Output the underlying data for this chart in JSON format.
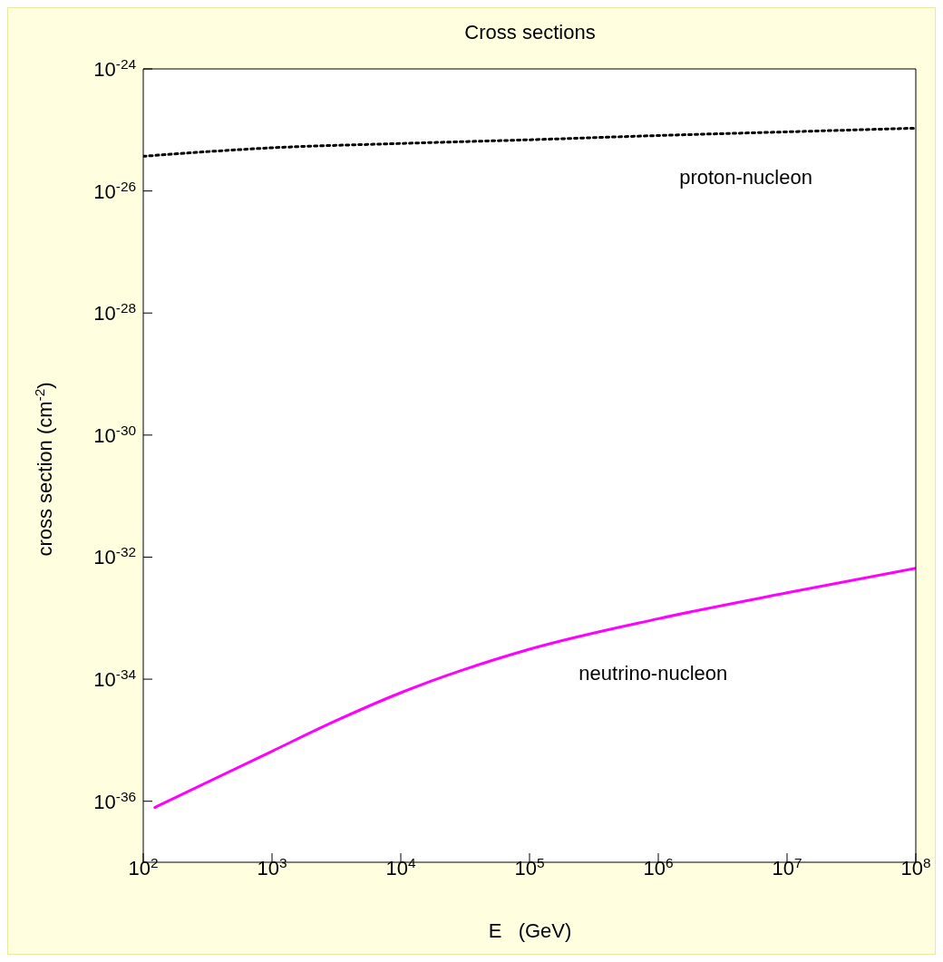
{
  "chart_data": {
    "type": "line",
    "title": "Cross sections",
    "xlabel": "E   (GeV)",
    "ylabel": "cross section (cm$^{-2}$)",
    "log": "xy",
    "xlim": [
      100,
      100000000
    ],
    "ylim": [
      1e-37,
      1e-24
    ],
    "xticks": [
      {
        "value": 100,
        "label": "10$^{2}$"
      },
      {
        "value": 1000,
        "label": "10$^{3}$"
      },
      {
        "value": 10000,
        "label": "10$^{4}$"
      },
      {
        "value": 100000,
        "label": "10$^{5}$"
      },
      {
        "value": 1000000,
        "label": "10$^{6}$"
      },
      {
        "value": 10000000,
        "label": "10$^{7}$"
      },
      {
        "value": 100000000,
        "label": "10$^{8}$"
      }
    ],
    "yticks": [
      {
        "value": 1e-36,
        "label": "10$^{-36}$"
      },
      {
        "value": 1e-34,
        "label": "10$^{-34}$"
      },
      {
        "value": 1e-32,
        "label": "10$^{-32}$"
      },
      {
        "value": 1e-30,
        "label": "10$^{-30}$"
      },
      {
        "value": 1e-28,
        "label": "10$^{-28}$"
      },
      {
        "value": 1e-26,
        "label": "10$^{-26}$"
      },
      {
        "value": 1e-24,
        "label": "10$^{-24}$"
      }
    ],
    "marker": "none",
    "series": [
      {
        "name": "proton-nucleon",
        "color": "#000000",
        "line_style": "dotted",
        "x": [
          100,
          1000,
          10000,
          100000,
          1000000,
          10000000,
          100000000
        ],
        "values": [
          3.7e-26,
          5.1e-26,
          6e-26,
          6.9e-26,
          8.1e-26,
          9.3e-26,
          1.07e-25
        ]
      },
      {
        "name": "neutrino-nucleon",
        "color": "#ff00ff",
        "line_style": "solid",
        "x": [
          123,
          1000,
          3160,
          10000,
          100000,
          1000000,
          10000000,
          100000000
        ],
        "values": [
          7.9e-37,
          6.6e-36,
          2.1e-35,
          6e-35,
          3.1e-34,
          9.8e-34,
          2.6e-33,
          6.6e-33
        ]
      }
    ]
  }
}
